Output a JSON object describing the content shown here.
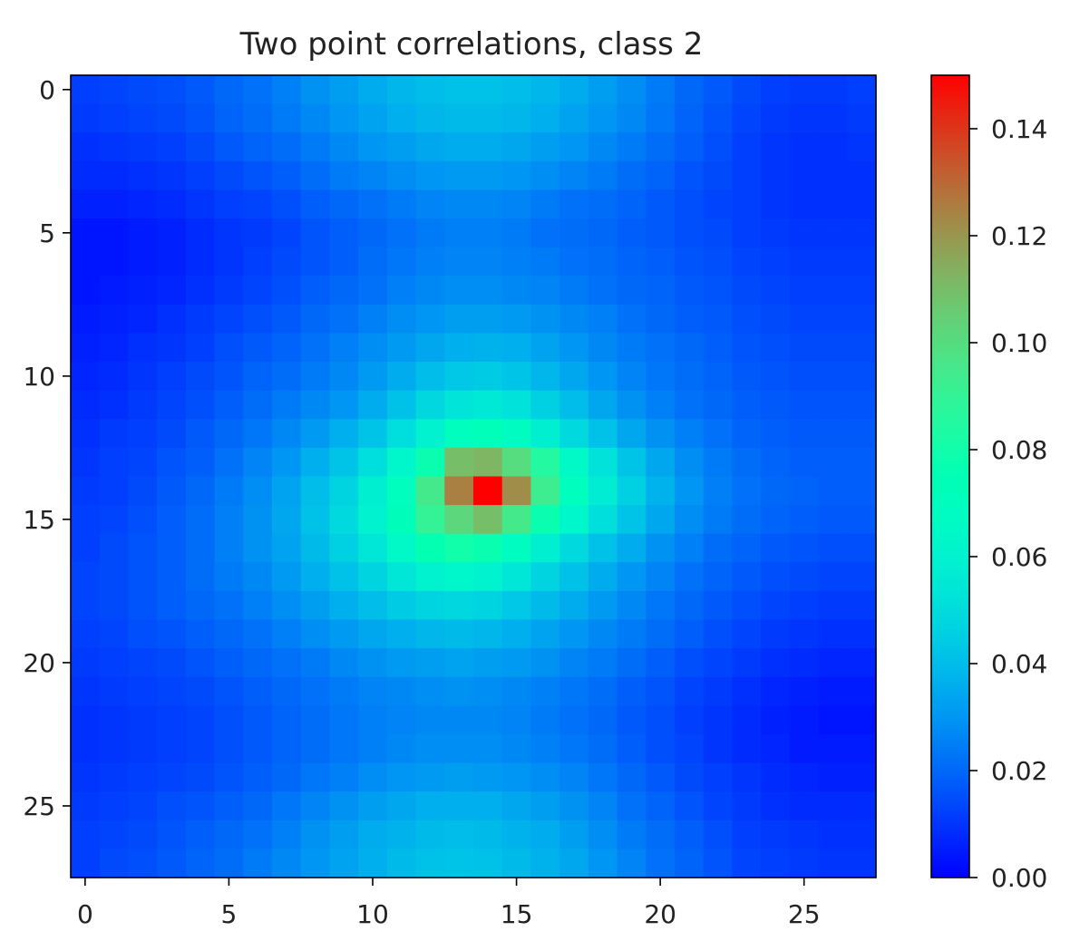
{
  "chart_data": {
    "type": "heatmap",
    "title": "Two point correlations, class 2",
    "xlabel": "",
    "ylabel": "",
    "colormap": "rainbow",
    "grid": false,
    "rows": 28,
    "cols": 28,
    "xlim": [
      -0.5,
      27.5
    ],
    "ylim": [
      27.5,
      -0.5
    ],
    "x_ticks": [
      0,
      5,
      10,
      15,
      20,
      25
    ],
    "y_ticks": [
      0,
      5,
      10,
      15,
      20,
      25
    ],
    "colorbar": {
      "vmin": 0.0,
      "vmax": 0.15,
      "ticks": [
        0.0,
        0.02,
        0.04,
        0.06,
        0.08,
        0.1,
        0.12,
        0.14
      ],
      "tick_labels": [
        "0.00",
        "0.02",
        "0.04",
        "0.06",
        "0.08",
        "0.10",
        "0.12",
        "0.14"
      ]
    },
    "values": [
      [
        0.012,
        0.013,
        0.014,
        0.015,
        0.017,
        0.02,
        0.022,
        0.025,
        0.029,
        0.032,
        0.035,
        0.038,
        0.04,
        0.041,
        0.041,
        0.04,
        0.038,
        0.035,
        0.032,
        0.028,
        0.024,
        0.02,
        0.017,
        0.014,
        0.012,
        0.011,
        0.011,
        0.012
      ],
      [
        0.011,
        0.012,
        0.013,
        0.014,
        0.016,
        0.019,
        0.021,
        0.024,
        0.027,
        0.03,
        0.033,
        0.036,
        0.038,
        0.039,
        0.039,
        0.038,
        0.036,
        0.033,
        0.03,
        0.027,
        0.023,
        0.019,
        0.016,
        0.013,
        0.011,
        0.01,
        0.01,
        0.011
      ],
      [
        0.009,
        0.01,
        0.011,
        0.012,
        0.014,
        0.017,
        0.019,
        0.021,
        0.024,
        0.027,
        0.03,
        0.032,
        0.034,
        0.035,
        0.035,
        0.034,
        0.032,
        0.03,
        0.027,
        0.024,
        0.021,
        0.018,
        0.015,
        0.012,
        0.01,
        0.009,
        0.009,
        0.01
      ],
      [
        0.008,
        0.008,
        0.009,
        0.01,
        0.012,
        0.014,
        0.016,
        0.018,
        0.021,
        0.024,
        0.026,
        0.028,
        0.03,
        0.031,
        0.031,
        0.03,
        0.028,
        0.026,
        0.024,
        0.021,
        0.019,
        0.016,
        0.014,
        0.012,
        0.01,
        0.009,
        0.009,
        0.009
      ],
      [
        0.006,
        0.006,
        0.007,
        0.008,
        0.01,
        0.012,
        0.013,
        0.015,
        0.018,
        0.02,
        0.022,
        0.024,
        0.026,
        0.027,
        0.027,
        0.026,
        0.024,
        0.022,
        0.021,
        0.019,
        0.017,
        0.015,
        0.013,
        0.012,
        0.01,
        0.009,
        0.009,
        0.009
      ],
      [
        0.004,
        0.004,
        0.005,
        0.006,
        0.008,
        0.01,
        0.011,
        0.013,
        0.016,
        0.018,
        0.02,
        0.022,
        0.024,
        0.025,
        0.025,
        0.024,
        0.022,
        0.021,
        0.02,
        0.018,
        0.017,
        0.015,
        0.014,
        0.012,
        0.011,
        0.01,
        0.01,
        0.01
      ],
      [
        0.004,
        0.004,
        0.005,
        0.006,
        0.008,
        0.01,
        0.012,
        0.014,
        0.016,
        0.018,
        0.021,
        0.023,
        0.025,
        0.026,
        0.026,
        0.025,
        0.024,
        0.022,
        0.021,
        0.019,
        0.018,
        0.016,
        0.015,
        0.013,
        0.012,
        0.011,
        0.011,
        0.011
      ],
      [
        0.004,
        0.005,
        0.006,
        0.007,
        0.009,
        0.011,
        0.013,
        0.015,
        0.018,
        0.02,
        0.022,
        0.025,
        0.027,
        0.028,
        0.028,
        0.027,
        0.026,
        0.024,
        0.022,
        0.02,
        0.019,
        0.017,
        0.016,
        0.014,
        0.013,
        0.012,
        0.012,
        0.012
      ],
      [
        0.005,
        0.006,
        0.007,
        0.009,
        0.011,
        0.013,
        0.015,
        0.017,
        0.02,
        0.022,
        0.025,
        0.028,
        0.03,
        0.032,
        0.032,
        0.031,
        0.029,
        0.027,
        0.025,
        0.022,
        0.02,
        0.018,
        0.017,
        0.015,
        0.014,
        0.013,
        0.013,
        0.013
      ],
      [
        0.006,
        0.007,
        0.009,
        0.01,
        0.012,
        0.015,
        0.017,
        0.019,
        0.022,
        0.025,
        0.028,
        0.031,
        0.034,
        0.036,
        0.037,
        0.036,
        0.033,
        0.03,
        0.027,
        0.024,
        0.022,
        0.02,
        0.018,
        0.016,
        0.015,
        0.014,
        0.014,
        0.014
      ],
      [
        0.007,
        0.008,
        0.01,
        0.012,
        0.014,
        0.016,
        0.019,
        0.021,
        0.024,
        0.027,
        0.031,
        0.035,
        0.04,
        0.043,
        0.044,
        0.042,
        0.038,
        0.034,
        0.03,
        0.026,
        0.023,
        0.021,
        0.019,
        0.017,
        0.016,
        0.015,
        0.015,
        0.015
      ],
      [
        0.008,
        0.009,
        0.011,
        0.013,
        0.015,
        0.018,
        0.021,
        0.024,
        0.027,
        0.03,
        0.035,
        0.041,
        0.048,
        0.053,
        0.055,
        0.052,
        0.046,
        0.04,
        0.034,
        0.029,
        0.025,
        0.022,
        0.02,
        0.018,
        0.017,
        0.016,
        0.016,
        0.016
      ],
      [
        0.009,
        0.011,
        0.012,
        0.014,
        0.017,
        0.02,
        0.023,
        0.027,
        0.031,
        0.036,
        0.042,
        0.05,
        0.06,
        0.07,
        0.073,
        0.068,
        0.058,
        0.049,
        0.041,
        0.034,
        0.029,
        0.025,
        0.022,
        0.019,
        0.018,
        0.017,
        0.017,
        0.017
      ],
      [
        0.01,
        0.012,
        0.013,
        0.016,
        0.018,
        0.022,
        0.026,
        0.03,
        0.036,
        0.042,
        0.05,
        0.062,
        0.078,
        0.11,
        0.112,
        0.1,
        0.085,
        0.065,
        0.052,
        0.042,
        0.034,
        0.028,
        0.024,
        0.021,
        0.019,
        0.018,
        0.018,
        0.018
      ],
      [
        0.011,
        0.012,
        0.014,
        0.017,
        0.02,
        0.024,
        0.028,
        0.033,
        0.04,
        0.047,
        0.058,
        0.07,
        0.095,
        0.125,
        0.15,
        0.122,
        0.093,
        0.07,
        0.057,
        0.046,
        0.037,
        0.03,
        0.025,
        0.022,
        0.02,
        0.019,
        0.018,
        0.018
      ],
      [
        0.012,
        0.013,
        0.015,
        0.018,
        0.021,
        0.025,
        0.029,
        0.034,
        0.041,
        0.049,
        0.06,
        0.072,
        0.09,
        0.102,
        0.11,
        0.095,
        0.078,
        0.062,
        0.051,
        0.042,
        0.034,
        0.028,
        0.024,
        0.021,
        0.019,
        0.018,
        0.017,
        0.017
      ],
      [
        0.012,
        0.014,
        0.016,
        0.018,
        0.021,
        0.025,
        0.029,
        0.033,
        0.039,
        0.046,
        0.054,
        0.065,
        0.076,
        0.08,
        0.078,
        0.068,
        0.058,
        0.049,
        0.041,
        0.035,
        0.029,
        0.025,
        0.021,
        0.019,
        0.017,
        0.016,
        0.015,
        0.015
      ],
      [
        0.013,
        0.014,
        0.016,
        0.018,
        0.021,
        0.024,
        0.027,
        0.031,
        0.036,
        0.041,
        0.047,
        0.054,
        0.06,
        0.062,
        0.06,
        0.054,
        0.047,
        0.041,
        0.035,
        0.03,
        0.026,
        0.022,
        0.019,
        0.017,
        0.015,
        0.014,
        0.013,
        0.013
      ],
      [
        0.013,
        0.014,
        0.016,
        0.018,
        0.02,
        0.022,
        0.025,
        0.028,
        0.032,
        0.036,
        0.04,
        0.044,
        0.047,
        0.048,
        0.047,
        0.043,
        0.039,
        0.035,
        0.031,
        0.027,
        0.023,
        0.02,
        0.017,
        0.015,
        0.013,
        0.012,
        0.011,
        0.011
      ],
      [
        0.012,
        0.013,
        0.015,
        0.016,
        0.018,
        0.02,
        0.022,
        0.025,
        0.028,
        0.031,
        0.034,
        0.036,
        0.038,
        0.039,
        0.038,
        0.036,
        0.033,
        0.03,
        0.027,
        0.024,
        0.021,
        0.018,
        0.015,
        0.013,
        0.011,
        0.01,
        0.009,
        0.009
      ],
      [
        0.011,
        0.012,
        0.013,
        0.014,
        0.016,
        0.018,
        0.02,
        0.022,
        0.024,
        0.027,
        0.029,
        0.031,
        0.032,
        0.033,
        0.032,
        0.031,
        0.029,
        0.026,
        0.024,
        0.021,
        0.018,
        0.015,
        0.013,
        0.011,
        0.009,
        0.008,
        0.007,
        0.007
      ],
      [
        0.01,
        0.011,
        0.012,
        0.013,
        0.014,
        0.016,
        0.018,
        0.02,
        0.022,
        0.024,
        0.026,
        0.027,
        0.028,
        0.029,
        0.028,
        0.027,
        0.025,
        0.023,
        0.021,
        0.018,
        0.016,
        0.013,
        0.011,
        0.009,
        0.007,
        0.006,
        0.005,
        0.005
      ],
      [
        0.009,
        0.01,
        0.011,
        0.012,
        0.013,
        0.015,
        0.017,
        0.019,
        0.021,
        0.023,
        0.025,
        0.026,
        0.027,
        0.027,
        0.027,
        0.026,
        0.024,
        0.022,
        0.02,
        0.017,
        0.015,
        0.012,
        0.01,
        0.008,
        0.006,
        0.005,
        0.004,
        0.004
      ],
      [
        0.009,
        0.01,
        0.011,
        0.012,
        0.013,
        0.015,
        0.017,
        0.019,
        0.021,
        0.023,
        0.025,
        0.027,
        0.028,
        0.028,
        0.028,
        0.027,
        0.025,
        0.023,
        0.021,
        0.018,
        0.015,
        0.013,
        0.01,
        0.008,
        0.007,
        0.005,
        0.005,
        0.005
      ],
      [
        0.01,
        0.011,
        0.012,
        0.013,
        0.014,
        0.016,
        0.018,
        0.02,
        0.023,
        0.025,
        0.028,
        0.03,
        0.031,
        0.032,
        0.031,
        0.03,
        0.028,
        0.026,
        0.023,
        0.02,
        0.017,
        0.014,
        0.012,
        0.01,
        0.008,
        0.007,
        0.006,
        0.006
      ],
      [
        0.011,
        0.012,
        0.013,
        0.015,
        0.016,
        0.018,
        0.02,
        0.023,
        0.026,
        0.029,
        0.032,
        0.034,
        0.036,
        0.036,
        0.036,
        0.034,
        0.032,
        0.029,
        0.026,
        0.022,
        0.019,
        0.016,
        0.013,
        0.011,
        0.009,
        0.008,
        0.008,
        0.008
      ],
      [
        0.012,
        0.013,
        0.014,
        0.016,
        0.018,
        0.02,
        0.022,
        0.025,
        0.029,
        0.032,
        0.035,
        0.037,
        0.039,
        0.04,
        0.039,
        0.037,
        0.035,
        0.032,
        0.028,
        0.024,
        0.021,
        0.018,
        0.015,
        0.012,
        0.011,
        0.01,
        0.009,
        0.009
      ],
      [
        0.012,
        0.014,
        0.015,
        0.017,
        0.019,
        0.021,
        0.024,
        0.027,
        0.03,
        0.033,
        0.036,
        0.039,
        0.041,
        0.042,
        0.041,
        0.039,
        0.037,
        0.034,
        0.03,
        0.026,
        0.022,
        0.019,
        0.016,
        0.013,
        0.012,
        0.011,
        0.01,
        0.01
      ]
    ]
  }
}
